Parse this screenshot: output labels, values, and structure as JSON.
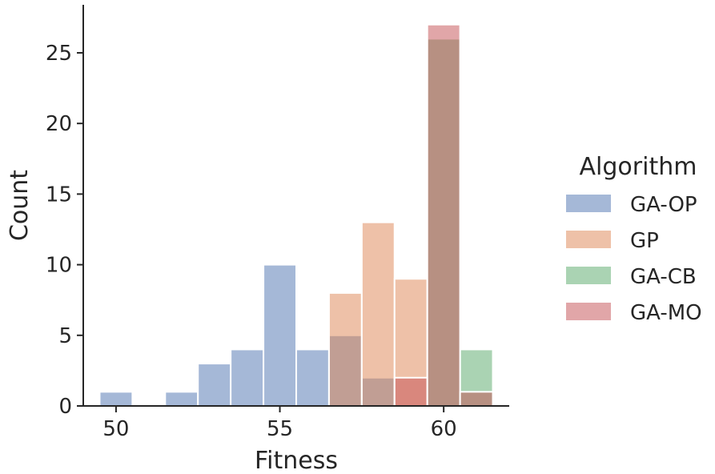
{
  "chart_data": {
    "type": "histogram",
    "xlabel": "Fitness",
    "ylabel": "Count",
    "xlim": [
      49,
      62
    ],
    "ylim": [
      0,
      28.4
    ],
    "xticks": [
      50,
      55,
      60
    ],
    "yticks": [
      0,
      5,
      10,
      15,
      20,
      25
    ],
    "bin_edges": [
      49.5,
      50.5,
      51.5,
      52.5,
      53.5,
      54.5,
      55.5,
      56.5,
      57.5,
      58.5,
      59.5,
      60.5,
      61.5
    ],
    "legend": {
      "title": "Algorithm",
      "placement": "right"
    },
    "grid": false,
    "series": [
      {
        "name": "GA-OP",
        "color": "#4c72b0",
        "values": [
          1,
          0,
          1,
          3,
          4,
          10,
          4,
          5,
          2,
          0,
          0,
          0
        ]
      },
      {
        "name": "GP",
        "color": "#dd8452",
        "values": [
          0,
          0,
          0,
          0,
          0,
          0,
          0,
          8,
          13,
          9,
          0,
          0
        ]
      },
      {
        "name": "GA-CB",
        "color": "#55a868",
        "values": [
          0,
          0,
          0,
          0,
          0,
          0,
          0,
          0,
          0,
          0,
          26,
          4
        ]
      },
      {
        "name": "GA-MO",
        "color": "#c44e52",
        "values": [
          0,
          0,
          0,
          0,
          0,
          0,
          0,
          0,
          0,
          2,
          27,
          1
        ]
      }
    ]
  }
}
